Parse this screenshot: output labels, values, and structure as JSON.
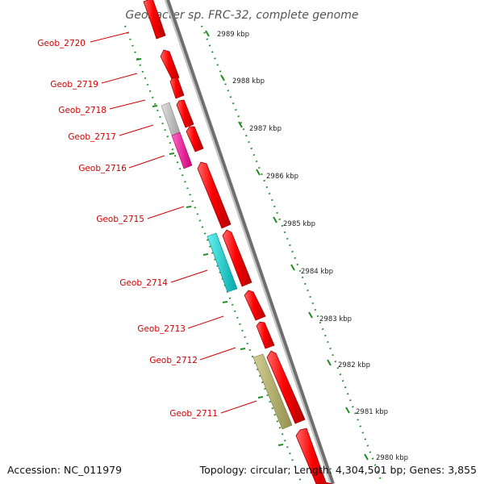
{
  "title": "Geobacter sp. FRC-32, complete genome",
  "footer": {
    "accession": "Accession: NC_011979",
    "summary": "Topology: circular; Length: 4,304,501 bp; Genes: 3,855"
  },
  "kbp_labels": [
    "2989 kbp",
    "2988 kbp",
    "2987 kbp",
    "2986 kbp",
    "2985 kbp",
    "2984 kbp",
    "2983 kbp",
    "2982 kbp",
    "2981 kbp",
    "2980 kbp"
  ],
  "gene_labels": [
    "Geob_2720",
    "Geob_2719",
    "Geob_2718",
    "Geob_2717",
    "Geob_2716",
    "Geob_2715",
    "Geob_2714",
    "Geob_2713",
    "Geob_2712",
    "Geob_2711"
  ],
  "colors": {
    "gene_forward": "#ff0000",
    "backbone": "#888888",
    "ruler": "#228b22",
    "label": "#d00000",
    "feature_grey": "#c0c0c0",
    "feature_magenta": "#ee2299",
    "feature_cyan": "#11cccc",
    "feature_olive": "#b5b070"
  }
}
